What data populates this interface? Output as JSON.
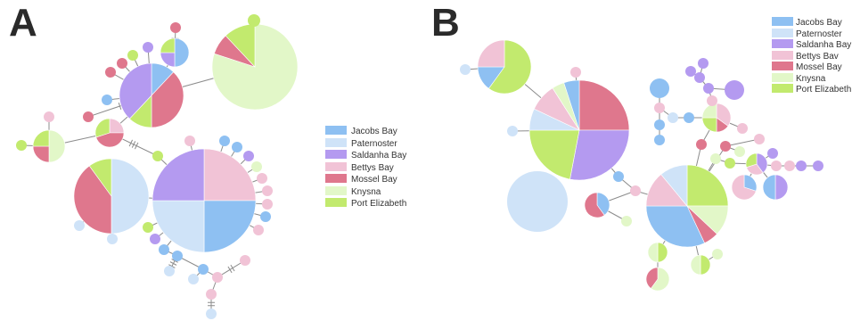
{
  "panels": [
    {
      "id": "A",
      "label": "A"
    },
    {
      "id": "B",
      "label": "B"
    }
  ],
  "colors": {
    "jacobs": "#8ec0f2",
    "paternoster": "#cfe3f8",
    "saldanha": "#b49af0",
    "bettys": "#f1c3d6",
    "mossel": "#df778d",
    "knysna": "#e2f7c8",
    "portelizabeth": "#c2ea6e"
  },
  "legend_A": [
    {
      "key": "jacobs",
      "label": "Jacobs Bay"
    },
    {
      "key": "paternoster",
      "label": "Paternoster"
    },
    {
      "key": "saldanha",
      "label": "Saldanha Bay"
    },
    {
      "key": "bettys",
      "label": "Bettys Bay"
    },
    {
      "key": "mossel",
      "label": "Mossel Bay"
    },
    {
      "key": "knysna",
      "label": "Knysna"
    },
    {
      "key": "portelizabeth",
      "label": "Port Elizabeth"
    }
  ],
  "legend_B": [
    {
      "key": "jacobs",
      "label": "Jacobs Bay"
    },
    {
      "key": "paternoster",
      "label": "Paternoster"
    },
    {
      "key": "saldanha",
      "label": "Saldanha Bay"
    },
    {
      "key": "bettys",
      "label": "Bettys Bav"
    },
    {
      "key": "mossel",
      "label": "Mossel Bay"
    },
    {
      "key": "knysna",
      "label": "Knysna"
    },
    {
      "key": "portelizabeth",
      "label": "Port Elizabeth"
    }
  ]
}
